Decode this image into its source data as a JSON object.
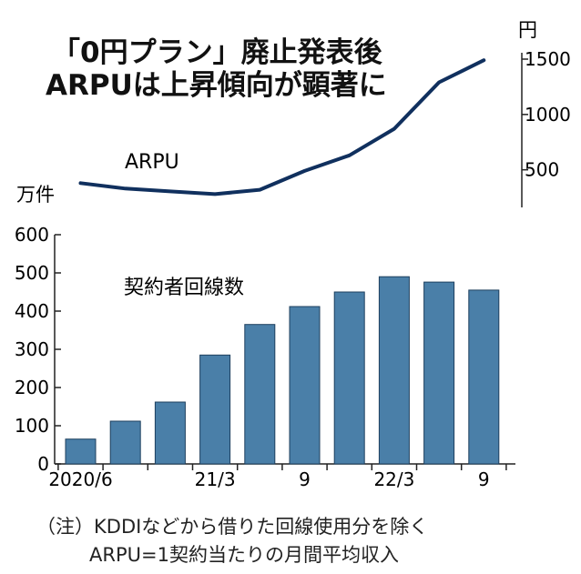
{
  "title_line1": "「0円プラン」廃止発表後",
  "title_line2": "ARPUは上昇傾向が顕著に",
  "notes": {
    "line1": "（注）KDDIなどから借りた回線使用分を除く",
    "line2": "ARPU=1契約当たりの月間平均収入"
  },
  "chart_data": [
    {
      "type": "line",
      "series_label": "ARPU",
      "yunit": "円",
      "y_ticks": [
        500,
        1000,
        1500
      ],
      "y_tick_labels": [
        "500",
        "1000",
        "1500"
      ],
      "ylim": [
        250,
        1650
      ],
      "x_index": [
        0,
        1,
        2,
        3,
        4,
        5,
        6,
        7,
        8,
        9
      ],
      "values": [
        380,
        330,
        305,
        280,
        320,
        490,
        630,
        870,
        1290,
        1490
      ],
      "color": "#10305e"
    },
    {
      "type": "bar",
      "series_label": "契約者回線数",
      "yunit": "万件",
      "ylim": [
        0,
        600
      ],
      "y_ticks": [
        0,
        100,
        200,
        300,
        400,
        500,
        600
      ],
      "y_tick_labels": [
        "0",
        "100",
        "200",
        "300",
        "400",
        "500",
        "600"
      ],
      "values": [
        65,
        112,
        162,
        285,
        365,
        412,
        450,
        490,
        476,
        455
      ],
      "x_tick_labels": [
        {
          "index": 0,
          "label": "2020/6"
        },
        {
          "index": 3,
          "label": "21/3"
        },
        {
          "index": 5,
          "label": "9"
        },
        {
          "index": 7,
          "label": "22/3"
        },
        {
          "index": 9,
          "label": "9"
        }
      ],
      "color": "#4a7fa8",
      "edge_color": "#1d3f5e"
    }
  ]
}
